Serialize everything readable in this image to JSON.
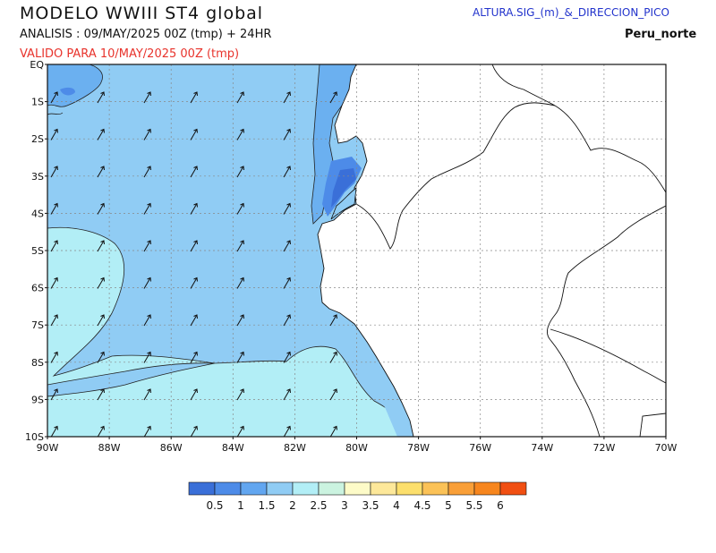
{
  "header": {
    "title": "MODELO  WWIII  ST4  global",
    "analysis": "ANALISIS : 09/MAY/2025 00Z  (tmp) + 24HR",
    "valid": "VALIDO PARA  10/MAY/2025 00Z  (tmp)",
    "parameter": "ALTURA.SIG_(m)_&_DIRECCION_PICO",
    "region": "Peru_norte"
  },
  "map": {
    "lat_labels": [
      "EQ",
      "1S",
      "2S",
      "3S",
      "4S",
      "5S",
      "6S",
      "7S",
      "8S",
      "9S",
      "10S"
    ],
    "lon_labels": [
      "90W",
      "88W",
      "86W",
      "84W",
      "82W",
      "80W",
      "78W",
      "76W",
      "74W",
      "72W",
      "70W"
    ],
    "ocean_color": "#90ccf4",
    "land_color": "#ffffff",
    "wave_direction": "south-southwest swell propagating north-northeast"
  },
  "colorbar": {
    "labels": [
      "0.5",
      "1",
      "1.5",
      "2",
      "2.5",
      "3",
      "3.5",
      "4",
      "4.5",
      "5",
      "5.5",
      "6"
    ],
    "colors": [
      "#3a6fd8",
      "#4d8be8",
      "#62a6f0",
      "#90ccf4",
      "#b2eef6",
      "#cbf3e0",
      "#fdfbc8",
      "#fde89a",
      "#fcdf6c",
      "#fbc257",
      "#f99f38",
      "#f7861e",
      "#f14f12"
    ]
  }
}
